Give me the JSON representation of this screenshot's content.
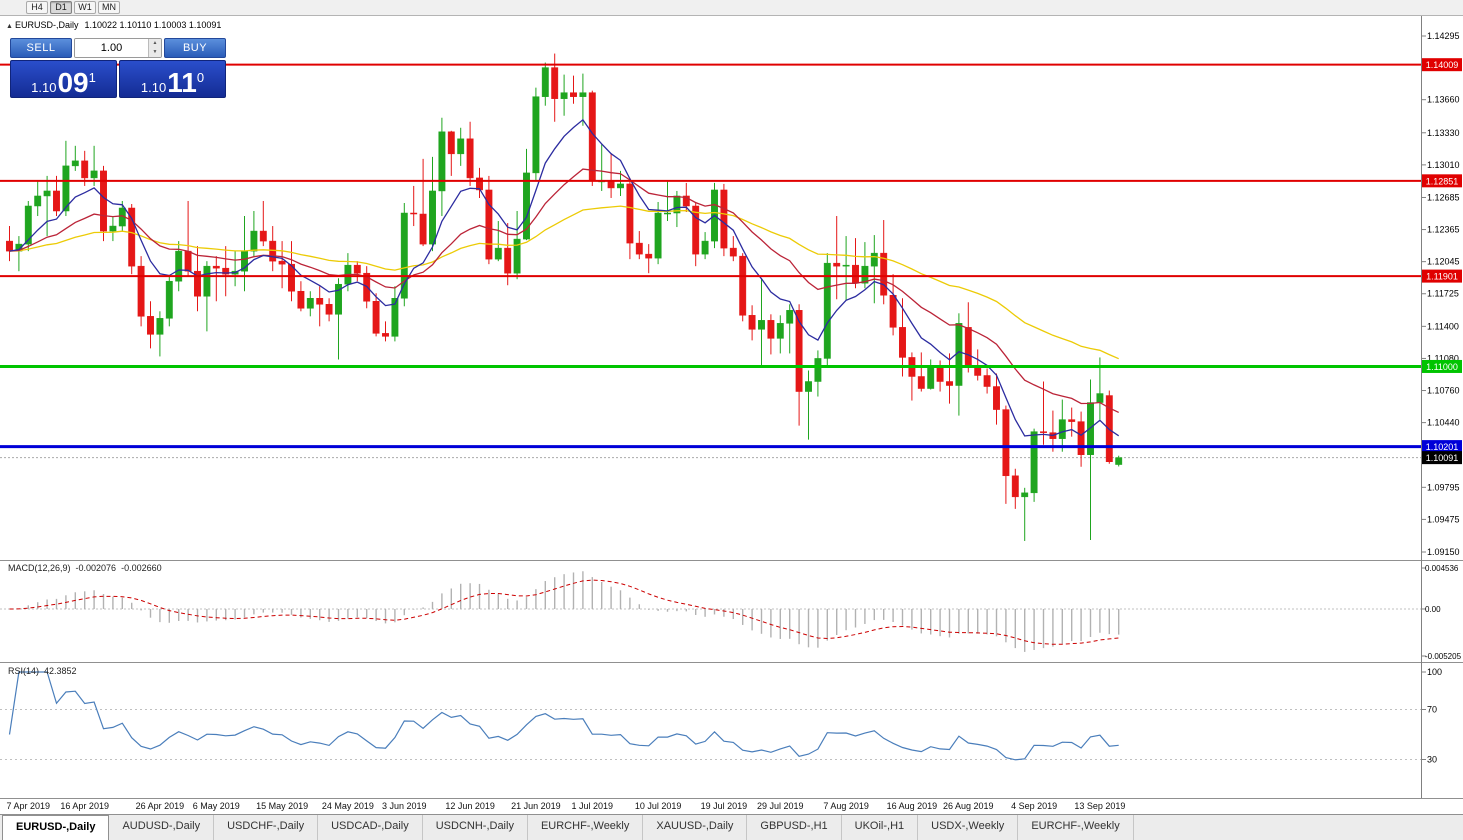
{
  "toolbar": {
    "timeframes": [
      "H4",
      "D1",
      "W1",
      "MN"
    ],
    "active": "D1"
  },
  "chart_header": {
    "symbol": "EURUSD-,Daily",
    "quote": "1.10022 1.10110 1.10003 1.10091"
  },
  "trade_panel": {
    "sell_label": "SELL",
    "buy_label": "BUY",
    "volume": "1.00",
    "sell_price_prefix": "1.10",
    "sell_price_big": "09",
    "sell_price_pip": "1",
    "buy_price_prefix": "1.10",
    "buy_price_big": "11",
    "buy_price_pip": "0"
  },
  "macd_panel": {
    "name": "MACD(12,26,9)",
    "value_main": "-0.002076",
    "value_signal": "-0.002660",
    "axis_top": "0.004536",
    "axis_zero": "0.00",
    "axis_bottom": "-0.005205",
    "params": {
      "fast": 12,
      "slow": 26,
      "signal": 9
    }
  },
  "rsi_panel": {
    "name": "RSI(14)",
    "value": "42.3852",
    "period": 14,
    "levels": [
      70,
      30
    ],
    "axis": [
      "100",
      "70",
      "30"
    ]
  },
  "tabs": {
    "items": [
      {
        "label": "EURUSD-,Daily",
        "active": true
      },
      {
        "label": "AUDUSD-,Daily",
        "active": false
      },
      {
        "label": "USDCHF-,Daily",
        "active": false
      },
      {
        "label": "USDCAD-,Daily",
        "active": false
      },
      {
        "label": "USDCNH-,Daily",
        "active": false
      },
      {
        "label": "EURCHF-,Weekly",
        "active": false
      },
      {
        "label": "XAUUSD-,Daily",
        "active": false
      },
      {
        "label": "GBPUSD-,H1",
        "active": false
      },
      {
        "label": "UKOil-,H1",
        "active": false
      },
      {
        "label": "USDX-,Weekly",
        "active": false
      },
      {
        "label": "EURCHF-,Weekly",
        "active": false
      }
    ]
  },
  "chart_data": {
    "type": "candlestick",
    "symbol": "EURUSD",
    "timeframe": "Daily",
    "title": "EURUSD-,Daily",
    "price_range": {
      "top": 1.14295,
      "bottom": 1.0915
    },
    "y_ticks": [
      "1.14295",
      "1.13985",
      "1.13660",
      "1.13330",
      "1.13010",
      "1.12685",
      "1.12365",
      "1.12045",
      "1.11725",
      "1.11400",
      "1.11080",
      "1.10760",
      "1.10440",
      "1.10120",
      "1.09795",
      "1.09475",
      "1.09150"
    ],
    "x_labels": [
      {
        "i": 2,
        "t": "7 Apr 2019"
      },
      {
        "i": 8,
        "t": "16 Apr 2019"
      },
      {
        "i": 16,
        "t": "26 Apr 2019"
      },
      {
        "i": 22,
        "t": "6 May 2019"
      },
      {
        "i": 29,
        "t": "15 May 2019"
      },
      {
        "i": 36,
        "t": "24 May 2019"
      },
      {
        "i": 42,
        "t": "3 Jun 2019"
      },
      {
        "i": 49,
        "t": "12 Jun 2019"
      },
      {
        "i": 56,
        "t": "21 Jun 2019"
      },
      {
        "i": 62,
        "t": "1 Jul 2019"
      },
      {
        "i": 69,
        "t": "10 Jul 2019"
      },
      {
        "i": 76,
        "t": "19 Jul 2019"
      },
      {
        "i": 82,
        "t": "29 Jul 2019"
      },
      {
        "i": 89,
        "t": "7 Aug 2019"
      },
      {
        "i": 96,
        "t": "16 Aug 2019"
      },
      {
        "i": 102,
        "t": "26 Aug 2019"
      },
      {
        "i": 109,
        "t": "4 Sep 2019"
      },
      {
        "i": 116,
        "t": "13 Sep 2019"
      }
    ],
    "colors": {
      "bull": "#1fa51f",
      "bear": "#e51717",
      "axis": "#808080"
    },
    "moving_averages": [
      {
        "name": "slow-ma",
        "period": 50,
        "color": "#eccb06"
      },
      {
        "name": "medium-ma",
        "period": 21,
        "color": "#bb2438"
      },
      {
        "name": "fast-ma",
        "period": 8,
        "color": "#2c2ca0"
      }
    ],
    "hlines": [
      {
        "price": 1.14009,
        "label": "1.14009",
        "color": "#e00000",
        "width": 2
      },
      {
        "price": 1.12851,
        "label": "1.12851",
        "color": "#e00000",
        "width": 2
      },
      {
        "price": 1.11901,
        "label": "1.11901",
        "color": "#e00000",
        "width": 2
      },
      {
        "price": 1.11,
        "label": "1.11000",
        "color": "#00c400",
        "width": 3
      },
      {
        "price": 1.10201,
        "label": "1.10201",
        "color": "#0000d8",
        "width": 3
      }
    ],
    "current_price": 1.10091,
    "current_price_label": "1.10091",
    "candles": [
      [
        1.1225,
        1.124,
        1.1205,
        1.1215
      ],
      [
        1.1215,
        1.123,
        1.1195,
        1.1222
      ],
      [
        1.1222,
        1.1265,
        1.1215,
        1.126
      ],
      [
        1.126,
        1.1285,
        1.125,
        1.127
      ],
      [
        1.127,
        1.129,
        1.123,
        1.1275
      ],
      [
        1.1275,
        1.129,
        1.125,
        1.1255
      ],
      [
        1.1255,
        1.1325,
        1.125,
        1.13
      ],
      [
        1.13,
        1.132,
        1.1295,
        1.1305
      ],
      [
        1.1305,
        1.1315,
        1.128,
        1.1288
      ],
      [
        1.1288,
        1.132,
        1.128,
        1.1295
      ],
      [
        1.1295,
        1.13,
        1.1225,
        1.1235
      ],
      [
        1.1235,
        1.125,
        1.1225,
        1.124
      ],
      [
        1.124,
        1.1265,
        1.1235,
        1.1258
      ],
      [
        1.1258,
        1.1262,
        1.1192,
        1.12
      ],
      [
        1.12,
        1.121,
        1.114,
        1.115
      ],
      [
        1.115,
        1.1165,
        1.1118,
        1.1132
      ],
      [
        1.1132,
        1.1155,
        1.111,
        1.1148
      ],
      [
        1.1148,
        1.119,
        1.114,
        1.1185
      ],
      [
        1.1185,
        1.1225,
        1.1175,
        1.1215
      ],
      [
        1.1215,
        1.1265,
        1.119,
        1.1195
      ],
      [
        1.1195,
        1.122,
        1.1155,
        1.117
      ],
      [
        1.117,
        1.1205,
        1.1135,
        1.12
      ],
      [
        1.12,
        1.121,
        1.1165,
        1.1198
      ],
      [
        1.1198,
        1.122,
        1.117,
        1.1192
      ],
      [
        1.1192,
        1.1215,
        1.118,
        1.1195
      ],
      [
        1.1195,
        1.125,
        1.1175,
        1.1215
      ],
      [
        1.1215,
        1.1255,
        1.121,
        1.1235
      ],
      [
        1.1235,
        1.1265,
        1.122,
        1.1225
      ],
      [
        1.1225,
        1.124,
        1.1195,
        1.1205
      ],
      [
        1.1205,
        1.1225,
        1.1178,
        1.1202
      ],
      [
        1.1202,
        1.1225,
        1.1165,
        1.1175
      ],
      [
        1.1175,
        1.1185,
        1.1155,
        1.1158
      ],
      [
        1.1158,
        1.1175,
        1.115,
        1.1168
      ],
      [
        1.1168,
        1.118,
        1.114,
        1.1162
      ],
      [
        1.1162,
        1.1168,
        1.1145,
        1.1152
      ],
      [
        1.1152,
        1.1188,
        1.1107,
        1.1182
      ],
      [
        1.1182,
        1.1213,
        1.1175,
        1.1201
      ],
      [
        1.1201,
        1.1205,
        1.1185,
        1.1193
      ],
      [
        1.1193,
        1.12,
        1.1158,
        1.1165
      ],
      [
        1.1165,
        1.1173,
        1.113,
        1.1133
      ],
      [
        1.1133,
        1.1145,
        1.1125,
        1.113
      ],
      [
        1.113,
        1.118,
        1.1125,
        1.1168
      ],
      [
        1.1168,
        1.1263,
        1.116,
        1.1253
      ],
      [
        1.1253,
        1.128,
        1.124,
        1.1252
      ],
      [
        1.1252,
        1.1307,
        1.122,
        1.1222
      ],
      [
        1.1222,
        1.1309,
        1.1215,
        1.1275
      ],
      [
        1.1275,
        1.1348,
        1.125,
        1.1334
      ],
      [
        1.1334,
        1.1335,
        1.129,
        1.1312
      ],
      [
        1.1312,
        1.1338,
        1.13,
        1.1327
      ],
      [
        1.1327,
        1.1344,
        1.128,
        1.1288
      ],
      [
        1.1288,
        1.1298,
        1.1268,
        1.1276
      ],
      [
        1.1276,
        1.129,
        1.1202,
        1.1207
      ],
      [
        1.1207,
        1.1245,
        1.1205,
        1.1218
      ],
      [
        1.1218,
        1.1243,
        1.1181,
        1.1193
      ],
      [
        1.1193,
        1.1255,
        1.1187,
        1.1227
      ],
      [
        1.1227,
        1.1317,
        1.1226,
        1.1293
      ],
      [
        1.1293,
        1.1378,
        1.1285,
        1.1369
      ],
      [
        1.1369,
        1.1403,
        1.136,
        1.1398
      ],
      [
        1.1398,
        1.1412,
        1.1344,
        1.1367
      ],
      [
        1.1367,
        1.1391,
        1.135,
        1.1373
      ],
      [
        1.1373,
        1.139,
        1.1362,
        1.1369
      ],
      [
        1.1369,
        1.1392,
        1.134,
        1.1373
      ],
      [
        1.1373,
        1.1375,
        1.128,
        1.1285
      ],
      [
        1.1285,
        1.1322,
        1.1275,
        1.1285
      ],
      [
        1.1285,
        1.1312,
        1.1268,
        1.1278
      ],
      [
        1.1278,
        1.1295,
        1.127,
        1.1282
      ],
      [
        1.1282,
        1.1288,
        1.1207,
        1.1223
      ],
      [
        1.1223,
        1.1235,
        1.1207,
        1.1212
      ],
      [
        1.1212,
        1.1222,
        1.1193,
        1.1208
      ],
      [
        1.1208,
        1.1264,
        1.1202,
        1.1253
      ],
      [
        1.1253,
        1.1285,
        1.1245,
        1.1253
      ],
      [
        1.1253,
        1.1275,
        1.1239,
        1.127
      ],
      [
        1.127,
        1.1283,
        1.1254,
        1.126
      ],
      [
        1.126,
        1.1264,
        1.12,
        1.1212
      ],
      [
        1.1212,
        1.1234,
        1.1207,
        1.1225
      ],
      [
        1.1225,
        1.1283,
        1.1218,
        1.1276
      ],
      [
        1.1276,
        1.1282,
        1.121,
        1.1218
      ],
      [
        1.1218,
        1.123,
        1.1205,
        1.121
      ],
      [
        1.121,
        1.1213,
        1.1145,
        1.1151
      ],
      [
        1.1151,
        1.1161,
        1.1126,
        1.1137
      ],
      [
        1.1137,
        1.1188,
        1.1101,
        1.1146
      ],
      [
        1.1146,
        1.1152,
        1.1112,
        1.1128
      ],
      [
        1.1128,
        1.1151,
        1.1113,
        1.1143
      ],
      [
        1.1143,
        1.1162,
        1.1113,
        1.1156
      ],
      [
        1.1156,
        1.1162,
        1.1041,
        1.1075
      ],
      [
        1.1075,
        1.1096,
        1.1027,
        1.1085
      ],
      [
        1.1085,
        1.1116,
        1.107,
        1.1108
      ],
      [
        1.1108,
        1.1213,
        1.1101,
        1.1203
      ],
      [
        1.1203,
        1.125,
        1.1167,
        1.12
      ],
      [
        1.12,
        1.123,
        1.1166,
        1.1201
      ],
      [
        1.1201,
        1.1228,
        1.1178,
        1.1183
      ],
      [
        1.1183,
        1.1224,
        1.1178,
        1.12
      ],
      [
        1.12,
        1.1231,
        1.1163,
        1.1213
      ],
      [
        1.1213,
        1.1246,
        1.1162,
        1.1171
      ],
      [
        1.1171,
        1.1192,
        1.1131,
        1.1139
      ],
      [
        1.1139,
        1.1168,
        1.109,
        1.1109
      ],
      [
        1.1109,
        1.1114,
        1.1066,
        1.109
      ],
      [
        1.109,
        1.1114,
        1.1075,
        1.1078
      ],
      [
        1.1078,
        1.1107,
        1.1077,
        1.11
      ],
      [
        1.11,
        1.1106,
        1.1075,
        1.1085
      ],
      [
        1.1085,
        1.1113,
        1.1063,
        1.1081
      ],
      [
        1.1081,
        1.1153,
        1.1051,
        1.1143
      ],
      [
        1.1139,
        1.1164,
        1.1094,
        1.1101
      ],
      [
        1.1101,
        1.1117,
        1.1086,
        1.1091
      ],
      [
        1.1091,
        1.1098,
        1.1073,
        1.108
      ],
      [
        1.108,
        1.1093,
        1.1042,
        1.1057
      ],
      [
        1.1057,
        1.1061,
        1.0963,
        1.0991
      ],
      [
        1.0991,
        1.0998,
        1.0958,
        1.097
      ],
      [
        1.097,
        1.0979,
        1.0926,
        1.0974
      ],
      [
        1.0974,
        1.1038,
        1.0965,
        1.1035
      ],
      [
        1.1035,
        1.1085,
        1.1022,
        1.1034
      ],
      [
        1.1034,
        1.1056,
        1.1015,
        1.1028
      ],
      [
        1.1028,
        1.1067,
        1.1015,
        1.1047
      ],
      [
        1.1047,
        1.1059,
        1.103,
        1.1045
      ],
      [
        1.1045,
        1.1055,
        1.1,
        1.1012
      ],
      [
        1.1012,
        1.1087,
        1.0927,
        1.1064
      ],
      [
        1.1064,
        1.1109,
        1.1047,
        1.1073
      ],
      [
        1.1071,
        1.1076,
        1.1003,
        1.1005
      ],
      [
        1.10022,
        1.1011,
        1.10003,
        1.10091
      ]
    ]
  }
}
